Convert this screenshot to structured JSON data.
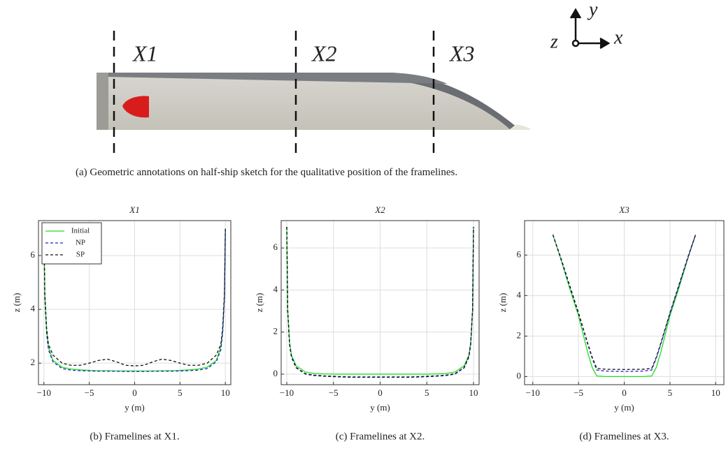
{
  "sketch": {
    "labels": [
      "X1",
      "X2",
      "X3"
    ],
    "axis_labels": {
      "y": "y",
      "z": "z",
      "x": "x"
    },
    "caption": "(a) Geometric annotations on half-ship sketch for the qualitative position of the framelines."
  },
  "chart_data": [
    {
      "type": "line",
      "title": "X1",
      "xlabel": "y (m)",
      "ylabel": "z (m)",
      "caption": "(b) Framelines at X1.",
      "grid": true,
      "legend": "upper left",
      "xlim": [
        -10.6,
        10.6
      ],
      "ylim": [
        1.2,
        7.3
      ],
      "xticks": [
        {
          "value": -10,
          "label": "−10"
        },
        {
          "value": -5,
          "label": "−5"
        },
        0,
        5,
        10
      ],
      "yticks": [
        2,
        4,
        6
      ],
      "x": [
        -10,
        -9.9,
        -9.7,
        -9.5,
        -9,
        -8,
        -7,
        -6,
        -5,
        -4,
        -3,
        -2,
        -1,
        0,
        1,
        2,
        3,
        4,
        5,
        6,
        7,
        8,
        9,
        9.5,
        9.7,
        9.9,
        10
      ],
      "series": [
        {
          "name": "Initial",
          "color": "#22dd22",
          "dash": "solid",
          "values": [
            7,
            4.5,
            3.2,
            2.6,
            2.1,
            1.85,
            1.78,
            1.75,
            1.73,
            1.72,
            1.72,
            1.71,
            1.71,
            1.71,
            1.71,
            1.71,
            1.72,
            1.72,
            1.73,
            1.75,
            1.78,
            1.85,
            2.1,
            2.6,
            3.2,
            4.5,
            7
          ]
        },
        {
          "name": "NP",
          "color": "#2222cc",
          "dash": "dashed",
          "values": [
            7,
            4.4,
            3.1,
            2.5,
            2.05,
            1.8,
            1.74,
            1.72,
            1.71,
            1.7,
            1.7,
            1.7,
            1.69,
            1.69,
            1.69,
            1.7,
            1.7,
            1.7,
            1.71,
            1.72,
            1.74,
            1.8,
            2.05,
            2.5,
            3.1,
            4.4,
            7
          ]
        },
        {
          "name": "SP",
          "color": "#111111",
          "dash": "dashed",
          "values": [
            7,
            4.6,
            3.3,
            2.7,
            2.3,
            2.0,
            1.92,
            1.92,
            2.0,
            2.1,
            2.15,
            2.05,
            1.92,
            1.9,
            1.92,
            2.05,
            2.15,
            2.1,
            2.0,
            1.92,
            1.92,
            2.0,
            2.3,
            2.7,
            3.3,
            4.6,
            7
          ]
        }
      ]
    },
    {
      "type": "line",
      "title": "X2",
      "xlabel": "y (m)",
      "ylabel": "z (m)",
      "caption": "(c) Framelines at X2.",
      "grid": true,
      "xlim": [
        -10.6,
        10.6
      ],
      "ylim": [
        -0.5,
        7.3
      ],
      "xticks": [
        {
          "value": -10,
          "label": "−10"
        },
        {
          "value": -5,
          "label": "−5"
        },
        0,
        5,
        10
      ],
      "yticks": [
        0,
        2,
        4,
        6
      ],
      "x": [
        -10,
        -9.9,
        -9.7,
        -9.5,
        -9,
        -8,
        -7,
        -6,
        -5,
        -4,
        -3,
        -2,
        -1,
        0,
        1,
        2,
        3,
        4,
        5,
        6,
        7,
        8,
        9,
        9.5,
        9.7,
        9.9,
        10
      ],
      "series": [
        {
          "name": "Initial",
          "color": "#22dd22",
          "dash": "solid",
          "values": [
            7,
            3,
            1.5,
            0.9,
            0.4,
            0.1,
            0.03,
            0.01,
            0,
            0,
            0,
            0,
            0,
            0,
            0,
            0,
            0,
            0,
            0,
            0.01,
            0.03,
            0.1,
            0.4,
            0.9,
            1.5,
            3,
            7
          ]
        },
        {
          "name": "NP",
          "color": "#2222cc",
          "dash": "dashed",
          "values": [
            7,
            3,
            1.4,
            0.8,
            0.3,
            0,
            -0.07,
            -0.1,
            -0.12,
            -0.14,
            -0.15,
            -0.15,
            -0.15,
            -0.15,
            -0.15,
            -0.15,
            -0.15,
            -0.14,
            -0.12,
            -0.1,
            -0.07,
            0,
            0.3,
            0.8,
            1.4,
            3,
            7
          ]
        },
        {
          "name": "SP",
          "color": "#111111",
          "dash": "dashed",
          "values": [
            7,
            3.1,
            1.45,
            0.85,
            0.32,
            0.02,
            -0.05,
            -0.08,
            -0.1,
            -0.12,
            -0.13,
            -0.13,
            -0.13,
            -0.13,
            -0.13,
            -0.13,
            -0.13,
            -0.12,
            -0.1,
            -0.08,
            -0.05,
            0.02,
            0.32,
            0.85,
            1.45,
            3.1,
            7
          ]
        }
      ]
    },
    {
      "type": "line",
      "title": "X3",
      "xlabel": "y (m)",
      "ylabel": "z (m)",
      "caption": "(d) Framelines at X3.",
      "grid": true,
      "xlim": [
        -10.9,
        10.9
      ],
      "ylim": [
        -0.4,
        7.7
      ],
      "xticks": [
        {
          "value": -10,
          "label": "−10"
        },
        {
          "value": -5,
          "label": "−5"
        },
        0,
        5,
        10
      ],
      "yticks": [
        0,
        2,
        4,
        6
      ],
      "x": [
        -7.8,
        -7,
        -6,
        -5,
        -4,
        -3.5,
        -3,
        -2,
        0,
        2,
        3,
        3.5,
        4,
        5,
        6,
        7,
        7.8
      ],
      "series": [
        {
          "name": "Initial",
          "color": "#22dd22",
          "dash": "solid",
          "values": [
            7,
            5.9,
            4.4,
            3.0,
            1.2,
            0.45,
            0.03,
            0,
            0,
            0,
            0.03,
            0.45,
            1.2,
            3.0,
            4.4,
            5.9,
            7
          ]
        },
        {
          "name": "NP",
          "color": "#2222cc",
          "dash": "dashed",
          "values": [
            7,
            5.9,
            4.5,
            3.1,
            1.6,
            0.9,
            0.32,
            0.27,
            0.25,
            0.27,
            0.32,
            0.9,
            1.6,
            3.1,
            4.5,
            5.9,
            7
          ]
        },
        {
          "name": "SP",
          "color": "#111111",
          "dash": "dashed",
          "values": [
            7,
            5.95,
            4.55,
            3.15,
            1.65,
            0.95,
            0.4,
            0.36,
            0.35,
            0.36,
            0.4,
            0.95,
            1.65,
            3.15,
            4.55,
            5.95,
            7
          ]
        }
      ]
    }
  ]
}
